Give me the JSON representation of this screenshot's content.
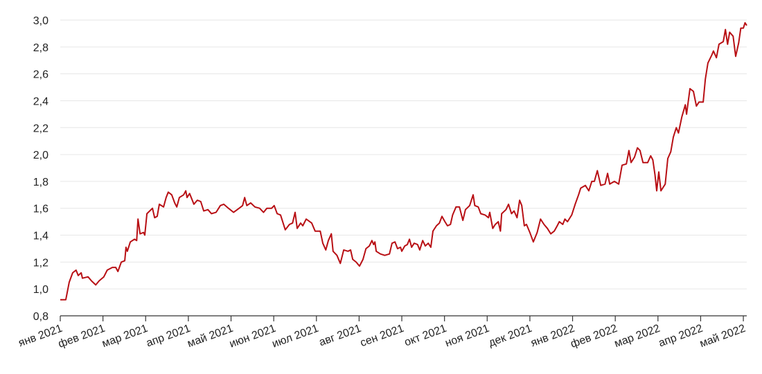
{
  "chart_data": {
    "type": "line",
    "color": "#b80f14",
    "grid": true,
    "xlim": [
      0,
      16.08
    ],
    "ylim": [
      0.8,
      3.0
    ],
    "xticks": [
      {
        "value": 0,
        "label": "янв 2021"
      },
      {
        "value": 1,
        "label": "фев 2021"
      },
      {
        "value": 2,
        "label": "мар 2021"
      },
      {
        "value": 3,
        "label": "апр 2021"
      },
      {
        "value": 4,
        "label": "май 2021"
      },
      {
        "value": 5,
        "label": "июн 2021"
      },
      {
        "value": 6,
        "label": "июл 2021"
      },
      {
        "value": 7,
        "label": "авг 2021"
      },
      {
        "value": 8,
        "label": "сен 2021"
      },
      {
        "value": 9,
        "label": "окт 2021"
      },
      {
        "value": 10,
        "label": "ноя 2021"
      },
      {
        "value": 11,
        "label": "дек 2021"
      },
      {
        "value": 12,
        "label": "янв 2022"
      },
      {
        "value": 13,
        "label": "фев 2022"
      },
      {
        "value": 14,
        "label": "мар 2022"
      },
      {
        "value": 15,
        "label": "апр 2022"
      },
      {
        "value": 16,
        "label": "май 2022"
      }
    ],
    "yticks": [
      {
        "value": 0.8,
        "label": "0,8"
      },
      {
        "value": 1.0,
        "label": "1,0"
      },
      {
        "value": 1.2,
        "label": "1,2"
      },
      {
        "value": 1.4,
        "label": "1,4"
      },
      {
        "value": 1.6,
        "label": "1,6"
      },
      {
        "value": 1.8,
        "label": "1,8"
      },
      {
        "value": 2.0,
        "label": "2,0"
      },
      {
        "value": 2.2,
        "label": "2,2"
      },
      {
        "value": 2.4,
        "label": "2,4"
      },
      {
        "value": 2.6,
        "label": "2,6"
      },
      {
        "value": 2.8,
        "label": "2,8"
      },
      {
        "value": 3.0,
        "label": "3,0"
      }
    ],
    "x": [
      0,
      0.13,
      0.21,
      0.29,
      0.37,
      0.42,
      0.49,
      0.52,
      0.65,
      0.73,
      0.83,
      0.91,
      1.02,
      1.1,
      1.22,
      1.3,
      1.35,
      1.43,
      1.51,
      1.54,
      1.57,
      1.64,
      1.74,
      1.79,
      1.82,
      1.87,
      1.95,
      1.98,
      2.03,
      2.16,
      2.21,
      2.27,
      2.32,
      2.42,
      2.48,
      2.53,
      2.61,
      2.68,
      2.73,
      2.79,
      2.89,
      2.94,
      2.97,
      3.03,
      3.13,
      3.21,
      3.29,
      3.36,
      3.46,
      3.54,
      3.65,
      3.75,
      3.83,
      3.94,
      4.06,
      4.19,
      4.27,
      4.32,
      4.37,
      4.46,
      4.56,
      4.67,
      4.76,
      4.84,
      4.95,
      5.01,
      5.08,
      5.16,
      5.27,
      5.37,
      5.44,
      5.5,
      5.55,
      5.63,
      5.68,
      5.76,
      5.89,
      5.97,
      6.09,
      6.15,
      6.22,
      6.28,
      6.35,
      6.39,
      6.48,
      6.56,
      6.64,
      6.74,
      6.8,
      6.85,
      6.93,
      7.01,
      7.09,
      7.16,
      7.24,
      7.3,
      7.34,
      7.37,
      7.4,
      7.5,
      7.6,
      7.71,
      7.77,
      7.84,
      7.9,
      7.97,
      8.0,
      8.07,
      8.13,
      8.18,
      8.23,
      8.29,
      8.37,
      8.42,
      8.49,
      8.55,
      8.62,
      8.68,
      8.73,
      8.81,
      8.88,
      8.94,
      9.01,
      9.07,
      9.14,
      9.19,
      9.27,
      9.35,
      9.43,
      9.49,
      9.59,
      9.67,
      9.71,
      9.79,
      9.85,
      9.95,
      10.03,
      10.06,
      10.13,
      10.19,
      10.26,
      10.31,
      10.34,
      10.44,
      10.5,
      10.57,
      10.63,
      10.7,
      10.76,
      10.81,
      10.87,
      10.92,
      11.0,
      11.08,
      11.17,
      11.25,
      11.33,
      11.41,
      11.49,
      11.57,
      11.64,
      11.69,
      11.77,
      11.82,
      11.88,
      11.98,
      12.06,
      12.14,
      12.19,
      12.3,
      12.38,
      12.45,
      12.51,
      12.58,
      12.66,
      12.76,
      12.82,
      12.87,
      12.98,
      13.08,
      13.16,
      13.26,
      13.32,
      13.37,
      13.45,
      13.52,
      13.58,
      13.65,
      13.76,
      13.83,
      13.88,
      13.93,
      13.97,
      14.02,
      14.07,
      14.17,
      14.23,
      14.3,
      14.36,
      14.43,
      14.48,
      14.56,
      14.64,
      14.67,
      14.75,
      14.83,
      14.9,
      14.96,
      15.06,
      15.11,
      15.17,
      15.26,
      15.3,
      15.37,
      15.43,
      15.53,
      15.58,
      15.63,
      15.68,
      15.76,
      15.82,
      15.89,
      15.94,
      16.0,
      16.04,
      16.08
    ],
    "values": [
      0.92,
      0.92,
      1.05,
      1.12,
      1.14,
      1.1,
      1.12,
      1.08,
      1.09,
      1.06,
      1.03,
      1.06,
      1.09,
      1.14,
      1.16,
      1.16,
      1.13,
      1.2,
      1.21,
      1.31,
      1.28,
      1.35,
      1.37,
      1.36,
      1.52,
      1.41,
      1.42,
      1.4,
      1.56,
      1.6,
      1.53,
      1.54,
      1.63,
      1.61,
      1.68,
      1.72,
      1.7,
      1.64,
      1.61,
      1.68,
      1.7,
      1.73,
      1.68,
      1.71,
      1.63,
      1.66,
      1.65,
      1.58,
      1.59,
      1.56,
      1.57,
      1.62,
      1.63,
      1.6,
      1.57,
      1.6,
      1.62,
      1.68,
      1.62,
      1.64,
      1.61,
      1.6,
      1.57,
      1.6,
      1.6,
      1.62,
      1.56,
      1.55,
      1.44,
      1.48,
      1.49,
      1.57,
      1.45,
      1.49,
      1.47,
      1.52,
      1.49,
      1.43,
      1.43,
      1.34,
      1.29,
      1.36,
      1.41,
      1.28,
      1.25,
      1.19,
      1.29,
      1.28,
      1.29,
      1.22,
      1.2,
      1.17,
      1.22,
      1.3,
      1.32,
      1.36,
      1.33,
      1.35,
      1.28,
      1.26,
      1.25,
      1.26,
      1.34,
      1.35,
      1.3,
      1.31,
      1.28,
      1.32,
      1.33,
      1.37,
      1.31,
      1.34,
      1.33,
      1.29,
      1.36,
      1.32,
      1.34,
      1.31,
      1.43,
      1.47,
      1.49,
      1.54,
      1.5,
      1.47,
      1.48,
      1.55,
      1.61,
      1.61,
      1.51,
      1.59,
      1.62,
      1.7,
      1.62,
      1.61,
      1.56,
      1.55,
      1.53,
      1.57,
      1.45,
      1.48,
      1.5,
      1.43,
      1.56,
      1.59,
      1.63,
      1.56,
      1.58,
      1.53,
      1.66,
      1.62,
      1.47,
      1.48,
      1.42,
      1.35,
      1.42,
      1.52,
      1.48,
      1.45,
      1.41,
      1.43,
      1.47,
      1.5,
      1.48,
      1.52,
      1.5,
      1.55,
      1.63,
      1.7,
      1.75,
      1.77,
      1.73,
      1.8,
      1.8,
      1.88,
      1.77,
      1.78,
      1.86,
      1.78,
      1.8,
      1.78,
      1.92,
      1.93,
      2.03,
      1.94,
      1.98,
      2.05,
      2.03,
      1.94,
      1.94,
      1.99,
      1.96,
      1.85,
      1.73,
      1.87,
      1.73,
      1.78,
      1.97,
      2.02,
      2.13,
      2.2,
      2.16,
      2.28,
      2.37,
      2.3,
      2.49,
      2.47,
      2.36,
      2.39,
      2.39,
      2.56,
      2.68,
      2.74,
      2.77,
      2.72,
      2.82,
      2.84,
      2.93,
      2.82,
      2.91,
      2.88,
      2.73,
      2.83,
      2.94,
      2.94,
      2.98,
      2.96
    ]
  }
}
